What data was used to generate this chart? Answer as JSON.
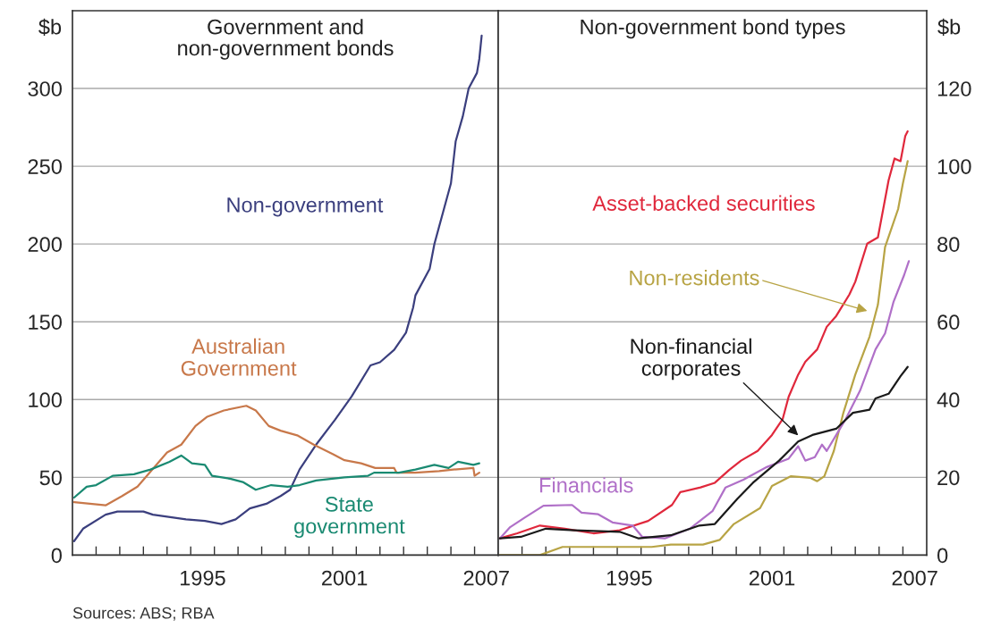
{
  "chart_data": [
    {
      "type": "line",
      "title": "Government and\nnon-government bonds",
      "ylabel": "$b",
      "xlim": [
        1990,
        2008
      ],
      "ylim": [
        0,
        350
      ],
      "yticks": [
        0,
        50,
        100,
        150,
        200,
        250,
        300
      ],
      "xticks": [
        {
          "value": 1991,
          "label": null
        },
        {
          "value": 1992,
          "label": null
        },
        {
          "value": 1993,
          "label": null
        },
        {
          "value": 1994,
          "label": null
        },
        {
          "value": 1995,
          "label": null
        },
        {
          "value": 1996,
          "label": null
        },
        {
          "value": 1997,
          "label": null
        },
        {
          "value": 1998,
          "label": null
        },
        {
          "value": 1999,
          "label": null
        },
        {
          "value": 2000,
          "label": null
        },
        {
          "value": 2001,
          "label": null
        },
        {
          "value": 2002,
          "label": null
        },
        {
          "value": 2003,
          "label": null
        },
        {
          "value": 2004,
          "label": null
        },
        {
          "value": 2005,
          "label": null
        },
        {
          "value": 2006,
          "label": null
        },
        {
          "value": 2007,
          "label": null
        },
        {
          "value": 1995.5,
          "label": "1995"
        },
        {
          "value": 2001.5,
          "label": "2001"
        },
        {
          "value": 2007.5,
          "label": "2007"
        }
      ],
      "grid": "y",
      "legend": false,
      "series": [
        {
          "name": "Non-government",
          "color": "#3b3f7e",
          "x": [
            1990.07,
            1990.45,
            1991.4,
            1991.9,
            1993.0,
            1993.4,
            1994.8,
            1995.6,
            1996.3,
            1996.9,
            1997.5,
            1998.2,
            1998.8,
            1999.2,
            1999.6,
            2000.3,
            2001.1,
            2001.8,
            2002.6,
            2003.0,
            2003.6,
            2004.1,
            2004.4,
            2004.5,
            2005.1,
            2005.3,
            2006.0,
            2006.2,
            2006.5,
            2006.75,
            2007.1,
            2007.2,
            2007.3
          ],
          "values": [
            9,
            17,
            26,
            28,
            28,
            26,
            23,
            22,
            20,
            23,
            30,
            33,
            38,
            42,
            55,
            71,
            87,
            102,
            122,
            124,
            132,
            143,
            159,
            167,
            184,
            200,
            239,
            266,
            282,
            300,
            310,
            319,
            334
          ]
        },
        {
          "name": "Australian\nGovernment",
          "color": "#c8784a",
          "x": [
            1990.07,
            1991.4,
            1992.1,
            1992.75,
            1993.6,
            1994.0,
            1994.6,
            1995.2,
            1995.7,
            1996.4,
            1997.35,
            1997.75,
            1998.3,
            1998.8,
            1999.5,
            2000.2,
            2001.0,
            2001.5,
            2002.2,
            2002.8,
            2003.6,
            2003.7,
            2004.5,
            2005.5,
            2006.1,
            2006.95,
            2007.0,
            2007.2
          ],
          "values": [
            34,
            32,
            38,
            44,
            59,
            66,
            71,
            83,
            89,
            93,
            96,
            93,
            83,
            80,
            77,
            71,
            65,
            61,
            59,
            56,
            56,
            53,
            53,
            54,
            55,
            56,
            51,
            53
          ]
        },
        {
          "name": "State\ngovernment",
          "color": "#1a8a72",
          "x": [
            1990.07,
            1990.6,
            1991.0,
            1991.7,
            1992.6,
            1993.3,
            1994.1,
            1994.6,
            1995.05,
            1995.6,
            1995.9,
            1996.7,
            1997.2,
            1997.75,
            1998.4,
            1999.1,
            1999.6,
            2000.3,
            2001.5,
            2002.5,
            2002.75,
            2003.8,
            2004.5,
            2005.3,
            2005.9,
            2006.3,
            2006.95,
            2007.2
          ],
          "values": [
            37,
            44,
            45,
            51,
            52,
            55,
            60,
            64,
            59,
            58,
            51,
            49,
            47,
            42,
            45,
            44,
            45,
            48,
            50,
            51,
            53,
            53,
            55,
            58,
            56,
            60,
            58,
            59
          ]
        }
      ],
      "annotations": [
        "Sources: ABS; RBA"
      ]
    },
    {
      "type": "line",
      "title": "Non-government bond types",
      "y2label": "$b",
      "xlim": [
        1990,
        2008
      ],
      "y2lim": [
        0,
        140
      ],
      "y2ticks": [
        0,
        20,
        40,
        60,
        80,
        100,
        120
      ],
      "xticks": [
        {
          "value": 1991,
          "label": null
        },
        {
          "value": 1992,
          "label": null
        },
        {
          "value": 1993,
          "label": null
        },
        {
          "value": 1994,
          "label": null
        },
        {
          "value": 1995,
          "label": null
        },
        {
          "value": 1996,
          "label": null
        },
        {
          "value": 1997,
          "label": null
        },
        {
          "value": 1998,
          "label": null
        },
        {
          "value": 1999,
          "label": null
        },
        {
          "value": 2000,
          "label": null
        },
        {
          "value": 2001,
          "label": null
        },
        {
          "value": 2002,
          "label": null
        },
        {
          "value": 2003,
          "label": null
        },
        {
          "value": 2004,
          "label": null
        },
        {
          "value": 2005,
          "label": null
        },
        {
          "value": 2006,
          "label": null
        },
        {
          "value": 2007,
          "label": null
        },
        {
          "value": 1995.5,
          "label": "1995"
        },
        {
          "value": 2001.5,
          "label": "2001"
        },
        {
          "value": 2007.5,
          "label": "2007"
        }
      ],
      "grid": "y",
      "legend": false,
      "series": [
        {
          "name": "Asset-backed securities",
          "color": "#e0283c",
          "axis": "y2",
          "x": [
            1990.07,
            1990.8,
            1991.75,
            1992.8,
            1994.0,
            1995.1,
            1996.3,
            1997.3,
            1997.65,
            1998.5,
            1999.1,
            1999.7,
            2000.2,
            2000.9,
            2001.5,
            2001.95,
            2002.2,
            2002.6,
            2002.9,
            2003.4,
            2003.8,
            2004.2,
            2004.75,
            2005.0,
            2005.5,
            2005.95,
            2006.4,
            2006.65,
            2006.9,
            2007.1,
            2007.2
          ],
          "values": [
            4.3,
            5.6,
            7.6,
            6.8,
            5.6,
            6.4,
            8.8,
            12.9,
            16.2,
            17.4,
            18.6,
            21.9,
            24.3,
            26.8,
            30.9,
            35,
            40.7,
            46.4,
            49.7,
            52.9,
            58.7,
            61.5,
            67,
            70.3,
            80.1,
            81.7,
            96.4,
            102,
            101.3,
            107.8,
            109
          ]
        },
        {
          "name": "Non-residents",
          "color": "#b8a445",
          "axis": "y2",
          "x": [
            1990.07,
            1991.75,
            1992.7,
            1996.45,
            1997.25,
            1998.6,
            1999.3,
            1999.9,
            2001.0,
            2001.5,
            2002.3,
            2003.1,
            2003.4,
            2003.7,
            2004.1,
            2004.5,
            2005.0,
            2005.6,
            2005.95,
            2006.25,
            2006.8,
            2007.0,
            2007.2
          ],
          "values": [
            0,
            0,
            2.1,
            2.1,
            2.7,
            2.7,
            3.9,
            8,
            12.1,
            17.8,
            20.3,
            19.9,
            19,
            20.3,
            26.8,
            36.6,
            46.4,
            56.2,
            64.4,
            79.2,
            89,
            95.6,
            101.3
          ]
        },
        {
          "name": "Financials",
          "color": "#b070c8",
          "axis": "y2",
          "x": [
            1990.07,
            1990.5,
            1991.1,
            1991.9,
            1993.1,
            1993.5,
            1994.2,
            1994.8,
            1995.65,
            1996.05,
            1997.0,
            1998.05,
            1999.0,
            1999.55,
            2000.3,
            2001.3,
            2002.2,
            2002.6,
            2002.9,
            2003.3,
            2003.6,
            2003.8,
            2004.2,
            2004.6,
            2005.2,
            2005.85,
            2006.25,
            2006.6,
            2007.05,
            2007.25
          ],
          "values": [
            4.3,
            7.2,
            9.6,
            12.7,
            12.9,
            10.9,
            10.5,
            8.4,
            7.6,
            4.7,
            4.3,
            6.8,
            11.3,
            17.4,
            19.4,
            22.7,
            24.8,
            28,
            24.3,
            25.2,
            28.4,
            26.8,
            30.9,
            35,
            42.3,
            52.9,
            57,
            65,
            72,
            75.6
          ]
        },
        {
          "name": "Non-financial\ncorporates",
          "color": "#1a1a1a",
          "axis": "y2",
          "x": [
            1990.07,
            1990.95,
            1992.0,
            1993.2,
            1995.1,
            1995.9,
            1997.25,
            1998.45,
            1999.1,
            2000.05,
            2000.7,
            2001.8,
            2002.6,
            2003.2,
            2004.2,
            2004.9,
            2005.6,
            2005.85,
            2006.4,
            2006.9,
            2007.2
          ],
          "values": [
            4.3,
            4.7,
            6.8,
            6.4,
            6,
            4.3,
            5.1,
            7.6,
            8,
            14.5,
            18.6,
            24.3,
            29.2,
            30.9,
            32.5,
            36.6,
            37.4,
            40.3,
            41.5,
            46,
            48.4
          ]
        }
      ]
    }
  ]
}
